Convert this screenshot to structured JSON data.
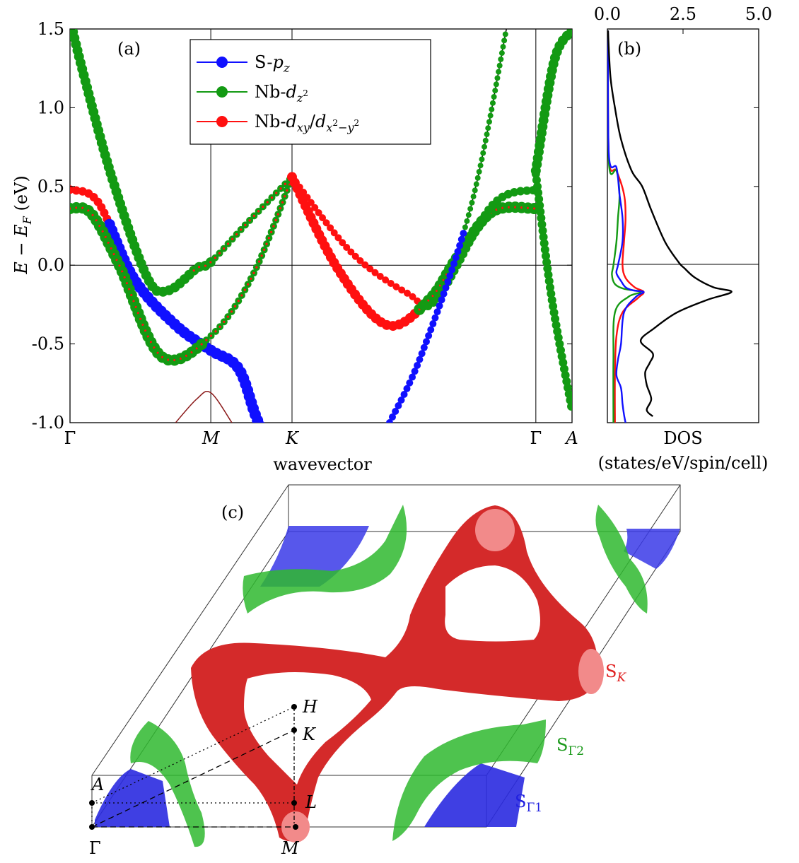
{
  "chart_data": [
    {
      "type": "line",
      "panel_label": "(a)",
      "xlabel": "wavevector",
      "ylabel": "E − E_F (eV)",
      "x_ticks": [
        "Γ",
        "M",
        "K",
        "Γ",
        "A"
      ],
      "x_tick_positions": [
        0,
        1,
        1.577,
        3.309,
        3.566
      ],
      "y_ticks": [
        "1.5",
        "1.0",
        "0.5",
        "0.0",
        "-0.5",
        "-1.0"
      ],
      "ylim": [
        -1.0,
        1.5
      ],
      "grid": "vertical lines at high-symmetry points and horizontal line at E_F",
      "legend_position": "top-center",
      "series": [
        {
          "name": "S-p_z",
          "color": "#1010ff"
        },
        {
          "name": "Nb-d_z²",
          "color": "#139a13"
        },
        {
          "name": "Nb-d_xy/d_x²−y²",
          "color": "#ff1010"
        }
      ],
      "bands": [
        {
          "id": "band-1",
          "x": [
            0.0,
            0.2,
            0.45,
            0.75,
            1.0,
            1.2,
            1.35,
            1.577
          ],
          "y": [
            0.48,
            0.4,
            -0.08,
            -0.38,
            -0.54,
            -0.66,
            -1.02,
            -1.3
          ]
        },
        {
          "id": "band-2",
          "x": [
            0.0,
            0.15,
            0.35,
            0.65,
            1.0,
            1.3,
            1.577
          ],
          "y": [
            0.36,
            0.33,
            0.0,
            -0.58,
            -0.45,
            -0.06,
            0.56
          ]
        },
        {
          "id": "band-3",
          "x": [
            0.0,
            0.1,
            0.3,
            0.55,
            0.7,
            0.9,
            1.0,
            1.25,
            1.577
          ],
          "y": [
            1.56,
            1.2,
            0.55,
            -0.08,
            -0.16,
            -0.02,
            0.02,
            0.26,
            0.56
          ]
        },
        {
          "id": "band-4",
          "x": [
            1.577,
            1.9,
            2.25,
            2.55,
            2.75,
            3.0,
            3.309
          ],
          "y": [
            0.56,
            -0.02,
            -0.38,
            -0.22,
            0.05,
            0.34,
            0.36
          ]
        },
        {
          "id": "band-5",
          "x": [
            1.577,
            2.0,
            2.4,
            2.6,
            3.0,
            3.309
          ],
          "y": [
            0.56,
            0.08,
            -0.18,
            -0.22,
            0.38,
            0.48
          ]
        },
        {
          "id": "band-6",
          "x": [
            2.27,
            2.5,
            2.85,
            3.1
          ],
          "y": [
            -1.0,
            -0.56,
            0.38,
            1.5
          ]
        },
        {
          "id": "band-7",
          "x": [
            0.75,
            0.9,
            1.0,
            1.15
          ],
          "y": [
            -1.0,
            -0.85,
            -0.81,
            -1.0
          ]
        },
        {
          "id": "band-8",
          "x": [
            3.309,
            3.42,
            3.566
          ],
          "y": [
            0.58,
            -0.2,
            -0.92
          ]
        },
        {
          "id": "band-9",
          "x": [
            3.309,
            3.44,
            3.566
          ],
          "y": [
            0.6,
            1.3,
            1.49
          ]
        }
      ]
    },
    {
      "type": "line",
      "panel_label": "(b)",
      "xlabel": "DOS\n(states/eV/spin/cell)",
      "x_ticks": [
        "0.0",
        "2.5",
        "5.0"
      ],
      "xlim": [
        0,
        5.0
      ],
      "ylim": [
        -1.0,
        1.5
      ],
      "grid": "horizontal line at E_F",
      "series": [
        {
          "name": "total",
          "color": "#000000",
          "x": [
            0.02,
            0.1,
            0.25,
            0.45,
            0.8,
            1.15,
            1.45,
            1.9,
            2.35,
            2.55,
            2.9,
            3.5,
            4.1,
            3.3,
            2.3,
            1.55,
            1.1,
            1.5,
            1.4,
            1.25,
            1.3,
            1.45,
            1.3,
            1.5
          ],
          "y": [
            1.49,
            1.2,
            1.0,
            0.8,
            0.6,
            0.5,
            0.35,
            0.15,
            0.02,
            -0.02,
            -0.08,
            -0.14,
            -0.17,
            -0.22,
            -0.3,
            -0.4,
            -0.48,
            -0.56,
            -0.62,
            -0.68,
            -0.76,
            -0.85,
            -0.92,
            -0.96
          ]
        },
        {
          "name": "S-p_z",
          "color": "#1010ff",
          "x": [
            0.02,
            0.05,
            0.3,
            0.4,
            0.5,
            0.5,
            0.35,
            0.3,
            0.45,
            0.6,
            0.85,
            1.2,
            0.95,
            0.55,
            0.45,
            0.35,
            0.3,
            0.45,
            0.5,
            0.55,
            0.6
          ],
          "y": [
            1.49,
            0.7,
            0.62,
            0.45,
            0.3,
            0.15,
            0.0,
            -0.05,
            -0.1,
            -0.14,
            -0.16,
            -0.17,
            -0.2,
            -0.3,
            -0.5,
            -0.6,
            -0.7,
            -0.78,
            -0.88,
            -0.95,
            -1.0
          ]
        },
        {
          "name": "Nb-d_z²",
          "color": "#139a13",
          "x": [
            0.02,
            0.05,
            0.3,
            0.4,
            0.35,
            0.3,
            0.2,
            0.15,
            0.25,
            0.55,
            1.1,
            0.7,
            0.25,
            0.2,
            0.2
          ],
          "y": [
            1.49,
            0.65,
            0.6,
            0.45,
            0.3,
            0.15,
            0.0,
            -0.06,
            -0.12,
            -0.15,
            -0.17,
            -0.2,
            -0.3,
            -0.6,
            -1.0
          ]
        },
        {
          "name": "Nb-d_xy/d_x²−y²",
          "color": "#ff1010",
          "x": [
            0.02,
            0.05,
            0.3,
            0.55,
            0.6,
            0.55,
            0.5,
            0.6,
            0.9,
            1.2,
            1.0,
            0.5,
            0.3,
            0.25,
            0.25
          ],
          "y": [
            1.49,
            0.68,
            0.6,
            0.45,
            0.3,
            0.15,
            0.0,
            -0.08,
            -0.14,
            -0.17,
            -0.21,
            -0.3,
            -0.45,
            -0.7,
            -1.0
          ]
        }
      ]
    },
    {
      "type": "diagram",
      "panel_label": "(c)",
      "surfaces": [
        {
          "name": "S_K",
          "color": "#d42a2a"
        },
        {
          "name": "S_Γ2",
          "color": "#2fb82f"
        },
        {
          "name": "S_Γ1",
          "color": "#2a2ae0"
        }
      ],
      "points": [
        "H",
        "K",
        "L",
        "A",
        "Γ",
        "M"
      ]
    }
  ]
}
